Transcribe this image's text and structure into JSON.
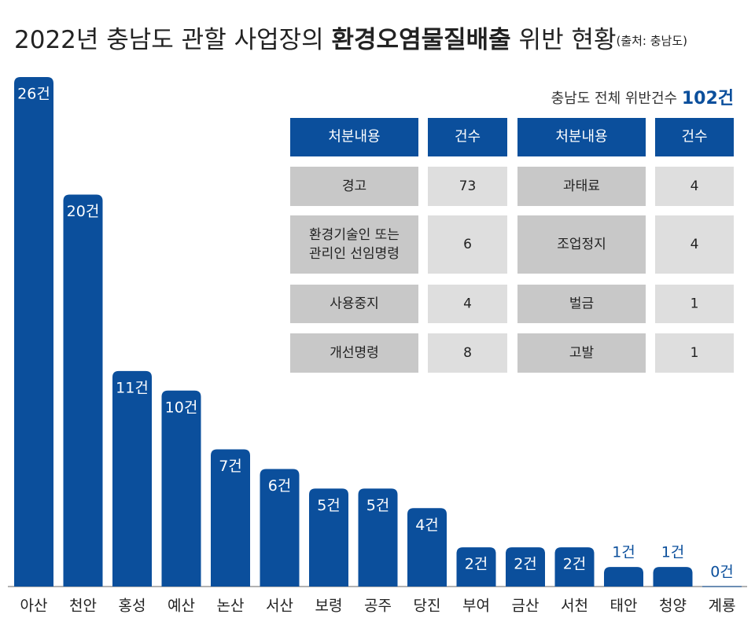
{
  "chart_data": {
    "type": "bar",
    "title": "2022년 충남도 관할 사업장의",
    "title_emphasis": "환경오염물질배출",
    "title_end": "위반 현황",
    "source": "(출처: 충남도)",
    "categories": [
      "아산",
      "천안",
      "홍성",
      "예산",
      "논산",
      "서산",
      "보령",
      "공주",
      "당진",
      "부여",
      "금산",
      "서천",
      "태안",
      "청양",
      "계룡"
    ],
    "values": [
      26,
      20,
      11,
      10,
      7,
      6,
      5,
      5,
      4,
      2,
      2,
      2,
      1,
      1,
      0
    ],
    "value_labels": [
      "26건",
      "20건",
      "11건",
      "10건",
      "7건",
      "6건",
      "5건",
      "5건",
      "4건",
      "2건",
      "2건",
      "2건",
      "1건",
      "1건",
      "0건"
    ],
    "color": "#0b4f9c"
  },
  "total_label": "충남도 전체 위반건수",
  "total": "102건",
  "table": {
    "header": [
      "처분내용",
      "건수",
      "처분내용",
      "건수"
    ],
    "rows": [
      [
        "경고",
        73,
        "과태료",
        4
      ],
      [
        [
          "환경기술인 또는",
          "관리인 선임명령"
        ],
        6,
        "조업정지",
        4
      ],
      [
        "사용중지",
        4,
        "벌금",
        1
      ],
      [
        "개선명령",
        8,
        "고발",
        1
      ]
    ]
  }
}
